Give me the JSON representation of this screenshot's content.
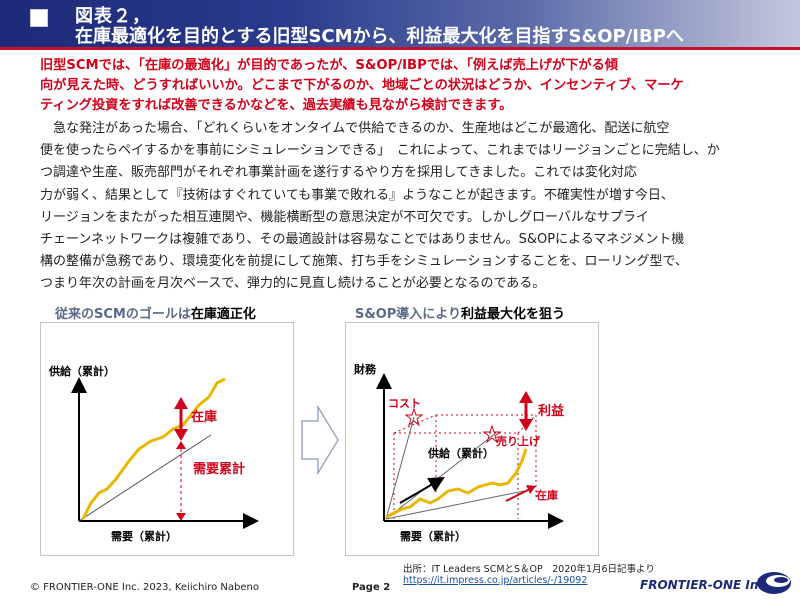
{
  "header": {
    "line1": "図表２，",
    "line2": "在庫最適化を目的とする旧型SCMから、利益最大化を目指すS&OP/IBPへ"
  },
  "lead": {
    "lines": [
      "旧型SCMでは、「在庫の最適化」が目的であったが、S&OP/IBPでは、「例えば売上げが下がる傾",
      "向が見えた時、どうすればいいか。どこまで下がるのか、地域ごとの状況はどうか、インセンティブ、マーケ",
      "ティング投資をすれば改善できるかなどを、過去実績も見ながら検討できます。"
    ]
  },
  "body": {
    "lines": [
      "　急な発注があった場合、「どれくらいをオンタイムで供給できるのか、生産地はどこが最適化、配送に航空",
      "便を使ったらペイするかを事前にシミュレーションできる」　これによって、これまではリージョンごとに完結し、か",
      "つ調達や生産、販売部門がそれぞれ事業計画を遂行するやり方を採用してきました。これでは変化対応",
      "力が弱く、結果として『技術はすぐれていても事業で敗れる』ようなことが起きます。不確実性が増す今日、",
      "リージョンをまたがった相互連関や、機能横断型の意思決定が不可欠です。しかしグローバルなサプライ",
      "チェーンネットワークは複雑であり、その最適設計は容易なことではありません。S&OPによるマネジメント機",
      "構の整備が急務であり、環境変化を前提にして施策、打ち手をシミュレーションすることを、ローリング型で、",
      "つまり年次の計画を月次ベースで、弾力的に見直し続けることが必要となるのである。"
    ]
  },
  "left_diagram": {
    "caption_prefix": "従来のSCMのゴールは",
    "caption_highlight": "在庫適正化",
    "y_label": "供給（累計）",
    "x_label": "需要（累計）",
    "label_inventory": "在庫",
    "label_demand": "需要累計"
  },
  "right_diagram": {
    "caption_prefix": "S&OP導入により",
    "caption_highlight": "利益最大化を狙う",
    "y_label": "財務",
    "x_label": "需要（累計）",
    "label_cost": "コスト",
    "label_profit": "利益",
    "label_sales": "売り上げ",
    "label_supply": "供給（累計）",
    "label_inventory": "在庫"
  },
  "footer": {
    "source_line1": "出所：IT Leaders SCMとS＆OP　2020年1月6日記事より",
    "source_line2": "https://it.impress.co.jp/articles/-/19092",
    "copyright": "© FRONTIER-ONE Inc. 2023,  Keiichiro Nabeno",
    "page": "Page 2",
    "brand": "FRONTIER-ONE Inc."
  },
  "colors": {
    "header_dark": "#1c2a78",
    "accent_red": "#d0021b",
    "curve_yellow": "#e8b800"
  }
}
